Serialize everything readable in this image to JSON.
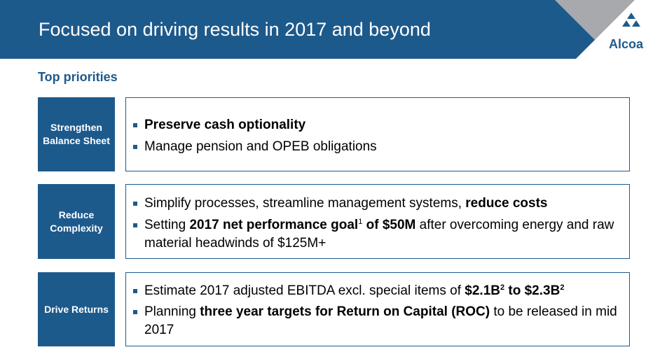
{
  "header": {
    "title": "Focused on driving results in 2017 and beyond",
    "logo_text": "Alcoa"
  },
  "section_title": "Top priorities",
  "colors": {
    "brand": "#1d5a8c",
    "logo_gray": "#a7a9ac"
  },
  "priorities": [
    {
      "label": "Strengthen Balance Sheet",
      "bullets": [
        {
          "parts": [
            {
              "t": "Preserve cash optionality",
              "b": true
            }
          ]
        },
        {
          "parts": [
            {
              "t": "Manage pension and OPEB obligations"
            }
          ]
        }
      ]
    },
    {
      "label": "Reduce Complexity",
      "bullets": [
        {
          "parts": [
            {
              "t": "Simplify processes, streamline management systems, "
            },
            {
              "t": "reduce costs",
              "b": true
            }
          ]
        },
        {
          "parts": [
            {
              "t": "Setting "
            },
            {
              "t": "2017 net performance goal",
              "b": true
            },
            {
              "t": "1",
              "sup": true
            },
            {
              "t": " of $50M",
              "b": true
            },
            {
              "t": " after overcoming energy and raw material headwinds of $125M+"
            }
          ]
        }
      ]
    },
    {
      "label": "Drive Returns",
      "bullets": [
        {
          "parts": [
            {
              "t": "Estimate 2017 adjusted EBITDA excl. special items of "
            },
            {
              "t": "$2.1B",
              "b": true
            },
            {
              "t": "2",
              "sup": true,
              "b": true
            },
            {
              "t": " to $2.3B",
              "b": true
            },
            {
              "t": "2",
              "sup": true,
              "b": true
            }
          ]
        },
        {
          "parts": [
            {
              "t": "Planning "
            },
            {
              "t": "three year targets for Return on Capital (ROC)",
              "b": true
            },
            {
              "t": " to be released in mid 2017"
            }
          ]
        }
      ]
    }
  ]
}
